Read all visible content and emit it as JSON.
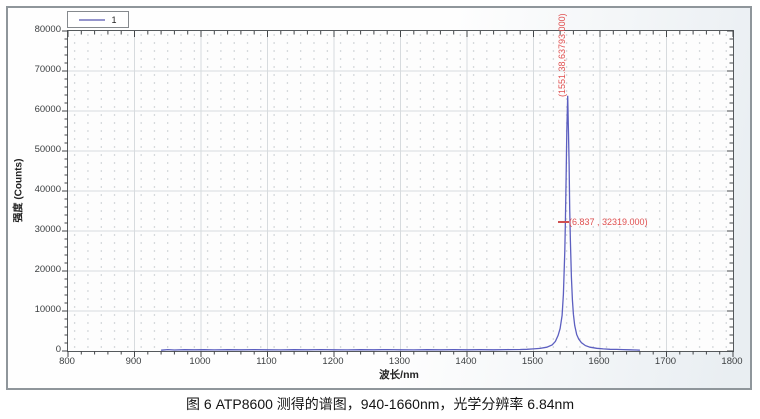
{
  "legend": {
    "series_label": "1"
  },
  "axes": {
    "x_label": "波长/nm",
    "y_label": "强度 (Counts)",
    "x_ticks": [
      800,
      900,
      1000,
      1100,
      1200,
      1300,
      1400,
      1500,
      1600,
      1700,
      1800
    ],
    "y_ticks": [
      0,
      10000,
      20000,
      30000,
      40000,
      50000,
      60000,
      70000,
      80000
    ]
  },
  "annotations": {
    "peak_label": "(1551.38,63793.000)",
    "fwhm_label": "(6.837 , 32319.000)"
  },
  "caption": "图 6 ATP8600 测得的谱图，940-1660nm，光学分辨率 6.84nm",
  "colors": {
    "curve": "#5c5fc0",
    "annotation": "#e04f4f",
    "frame": "#55595c",
    "grid": "#d7dbde",
    "tick": "#44474a"
  },
  "chart_data": {
    "type": "line",
    "title": "",
    "xlabel": "波长/nm",
    "ylabel": "强度 (Counts)",
    "xlim": [
      800,
      1800
    ],
    "ylim": [
      0,
      80000
    ],
    "x_major_step": 100,
    "x_minor_step": 20,
    "y_major_step": 10000,
    "y_minor_step": 2000,
    "grid": "dotted-minor, light-major",
    "legend_position": "top-left",
    "peak": {
      "x": 1551.38,
      "y": 63793.0
    },
    "half_max_marker": {
      "width_nm": 6.837,
      "level_counts": 32319.0
    },
    "data_range_nm": [
      940,
      1660
    ],
    "series": [
      {
        "name": "1",
        "points": [
          [
            940,
            200
          ],
          [
            950,
            340
          ],
          [
            960,
            260
          ],
          [
            975,
            320
          ],
          [
            990,
            290
          ],
          [
            1005,
            330
          ],
          [
            1020,
            280
          ],
          [
            1040,
            320
          ],
          [
            1060,
            290
          ],
          [
            1080,
            330
          ],
          [
            1100,
            300
          ],
          [
            1120,
            270
          ],
          [
            1140,
            320
          ],
          [
            1160,
            290
          ],
          [
            1180,
            340
          ],
          [
            1200,
            300
          ],
          [
            1220,
            270
          ],
          [
            1240,
            320
          ],
          [
            1260,
            290
          ],
          [
            1280,
            340
          ],
          [
            1300,
            310
          ],
          [
            1320,
            280
          ],
          [
            1340,
            330
          ],
          [
            1360,
            300
          ],
          [
            1380,
            320
          ],
          [
            1400,
            290
          ],
          [
            1420,
            330
          ],
          [
            1440,
            300
          ],
          [
            1460,
            340
          ],
          [
            1480,
            380
          ],
          [
            1490,
            430
          ],
          [
            1500,
            520
          ],
          [
            1510,
            650
          ],
          [
            1520,
            950
          ],
          [
            1528,
            1500
          ],
          [
            1533,
            2400
          ],
          [
            1537,
            3900
          ],
          [
            1540,
            5600
          ],
          [
            1543,
            8900
          ],
          [
            1545,
            14200
          ],
          [
            1547,
            25000
          ],
          [
            1548,
            32400
          ],
          [
            1549,
            43000
          ],
          [
            1550,
            54900
          ],
          [
            1551.38,
            63793
          ],
          [
            1552.5,
            55500
          ],
          [
            1553.5,
            47000
          ],
          [
            1554.5,
            35500
          ],
          [
            1555.5,
            27500
          ],
          [
            1557,
            18500
          ],
          [
            1558.5,
            12800
          ],
          [
            1560,
            9200
          ],
          [
            1562,
            6400
          ],
          [
            1565,
            4100
          ],
          [
            1568,
            3000
          ],
          [
            1572,
            2100
          ],
          [
            1578,
            1350
          ],
          [
            1585,
            950
          ],
          [
            1595,
            680
          ],
          [
            1605,
            520
          ],
          [
            1615,
            430
          ],
          [
            1625,
            390
          ],
          [
            1635,
            350
          ],
          [
            1645,
            300
          ],
          [
            1655,
            240
          ],
          [
            1660,
            200
          ]
        ]
      }
    ]
  }
}
